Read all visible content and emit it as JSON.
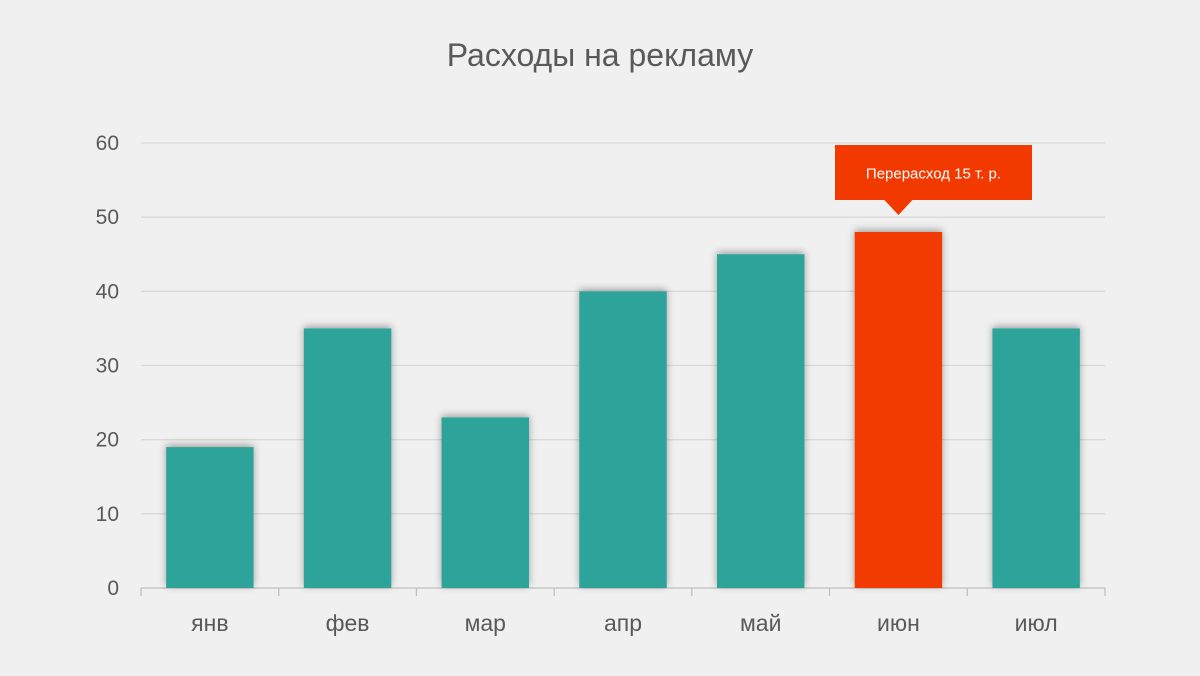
{
  "chart_data": {
    "type": "bar",
    "title": "Расходы на рекламу",
    "xlabel": "",
    "ylabel": "",
    "categories": [
      "янв",
      "фев",
      "мар",
      "апр",
      "май",
      "июн",
      "июл"
    ],
    "values": [
      19,
      35,
      23,
      40,
      45,
      48,
      35
    ],
    "ylim": [
      0,
      60
    ],
    "yticks": [
      0,
      10,
      20,
      30,
      40,
      50,
      60
    ],
    "grid": true,
    "legend": "none",
    "bar_color": "#2ea39a",
    "highlight_color": "#f23a00",
    "highlight_index": 5,
    "annotation": {
      "text": "Перерасход  15 т. р.",
      "category": "июн"
    }
  }
}
